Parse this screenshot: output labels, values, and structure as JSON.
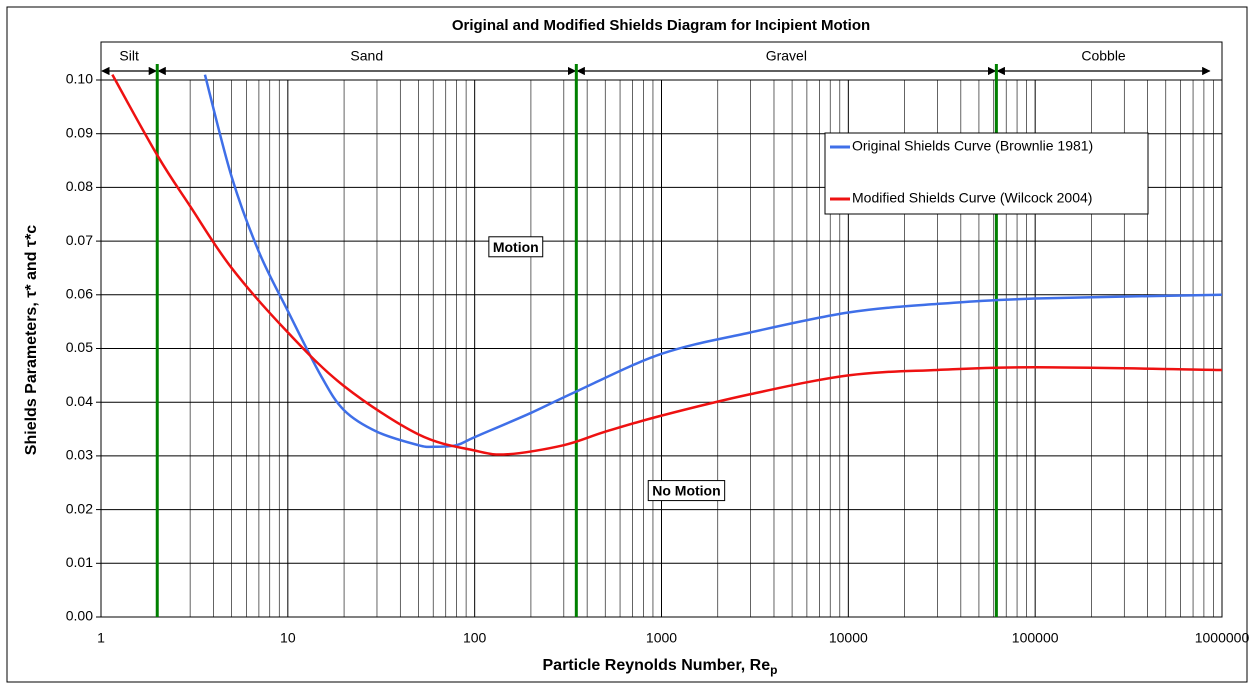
{
  "chart_data": {
    "type": "line",
    "title": "Original and Modified Shields Diagram for Incipient Motion",
    "x_label": "Particle Reynolds Number, Re",
    "x_label_subscript": "p",
    "y_label": "Shields Parameters, τ* and τ*c",
    "x_log": true,
    "xlim": [
      1,
      1000000
    ],
    "xticks": [
      1,
      10,
      100,
      1000,
      10000,
      100000,
      1000000
    ],
    "ylim": [
      0,
      0.1
    ],
    "yticks": [
      {
        "value": 0,
        "label": "0.00"
      },
      {
        "value": 0.01,
        "label": "0.01"
      },
      {
        "value": 0.02,
        "label": "0.02"
      },
      {
        "value": 0.03,
        "label": "0.03"
      },
      {
        "value": 0.04,
        "label": "0.04"
      },
      {
        "value": 0.05,
        "label": "0.05"
      },
      {
        "value": 0.06,
        "label": "0.06"
      },
      {
        "value": 0.07,
        "label": "0.07"
      },
      {
        "value": 0.08,
        "label": "0.08"
      },
      {
        "value": 0.09,
        "label": "0.09"
      },
      {
        "value": 0.1,
        "label": "0.10"
      }
    ],
    "grid": true,
    "minor_grid": true,
    "legend": "upper right",
    "series": [
      {
        "name": "Original Shields Curve (Brownlie 1981)",
        "color": "#3f6fe8",
        "x": [
          3.6,
          5,
          7,
          10,
          15,
          20,
          30,
          50,
          60,
          80,
          100,
          200,
          350,
          1000,
          3000,
          10000,
          30000,
          100000,
          1000000
        ],
        "values": [
          0.101,
          0.082,
          0.068,
          0.057,
          0.045,
          0.0385,
          0.0345,
          0.032,
          0.0317,
          0.032,
          0.0335,
          0.038,
          0.042,
          0.049,
          0.053,
          0.0567,
          0.0583,
          0.0593,
          0.06
        ]
      },
      {
        "name": "Modified Shields Curve (Wilcock 2004)",
        "color": "#ee1111",
        "x": [
          1.15,
          2,
          3,
          5,
          10,
          20,
          50,
          100,
          150,
          300,
          500,
          1000,
          3000,
          10000,
          30000,
          100000,
          1000000
        ],
        "values": [
          0.101,
          0.086,
          0.0765,
          0.065,
          0.053,
          0.043,
          0.034,
          0.031,
          0.0303,
          0.032,
          0.0345,
          0.0375,
          0.0415,
          0.045,
          0.046,
          0.0465,
          0.046
        ]
      }
    ],
    "boundaries": {
      "color": "#008000",
      "x": [
        2,
        350,
        62000
      ]
    },
    "regions": [
      {
        "name": "Silt",
        "from": 1,
        "to": 2
      },
      {
        "name": "Sand",
        "from": 2,
        "to": 350
      },
      {
        "name": "Gravel",
        "from": 350,
        "to": 62000
      },
      {
        "name": "Cobble",
        "from": 62000,
        "to": 870000
      }
    ],
    "annotations": [
      {
        "text": "Motion",
        "x": 166,
        "y": 0.0687
      },
      {
        "text": "No Motion",
        "x": 1360,
        "y": 0.0233
      }
    ]
  }
}
